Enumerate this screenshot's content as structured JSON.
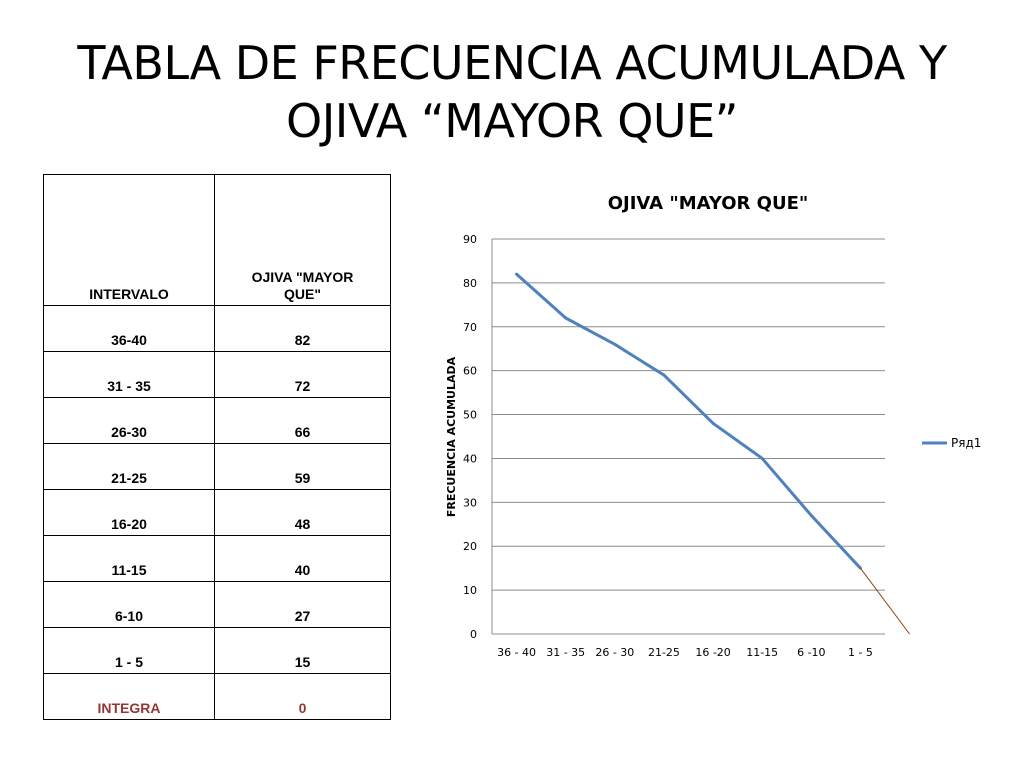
{
  "slide": {
    "title": "TABLA DE FRECUENCIA ACUMULADA Y OJIVA “MAYOR QUE”"
  },
  "table": {
    "headers": [
      "INTERVALO",
      "OJIVA \"MAYOR QUE\""
    ],
    "rows": [
      {
        "interval": "36-40",
        "value": "82"
      },
      {
        "interval": "31 - 35",
        "value": "72"
      },
      {
        "interval": "26-30",
        "value": "66"
      },
      {
        "interval": "21-25",
        "value": "59"
      },
      {
        "interval": "16-20",
        "value": "48"
      },
      {
        "interval": "11-15",
        "value": "40"
      },
      {
        "interval": "6-10",
        "value": "27"
      },
      {
        "interval": "1 - 5",
        "value": "15"
      },
      {
        "interval": "INTEGRA",
        "value": "0",
        "highlight": true
      }
    ],
    "highlight_color": "#943634"
  },
  "chart_data": {
    "type": "line",
    "title": "OJIVA \"MAYOR QUE\"",
    "xlabel": "",
    "ylabel": "FRECUENCIA ACUMULADA",
    "categories": [
      "36 - 40",
      "31 - 35",
      "26 - 30",
      "21-25",
      "16 -20",
      "11-15",
      "6 -10",
      "1 - 5"
    ],
    "series": [
      {
        "name": "Ряд1",
        "values": [
          82,
          72,
          66,
          59,
          48,
          40,
          27,
          15
        ],
        "color": "#4f81bd"
      }
    ],
    "extension": {
      "from": 15,
      "to": 0,
      "color": "#8b4513"
    },
    "ylim": [
      0,
      90
    ],
    "yticks": [
      0,
      10,
      20,
      30,
      40,
      50,
      60,
      70,
      80,
      90
    ],
    "grid": true,
    "legend": "right"
  }
}
